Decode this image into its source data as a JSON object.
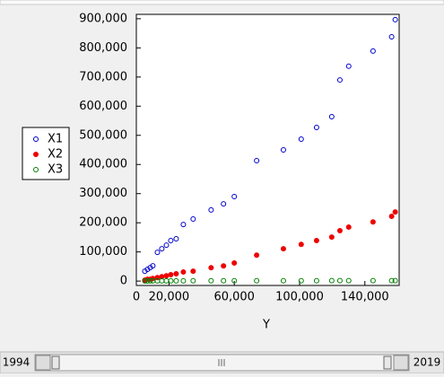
{
  "chart_data": {
    "type": "scatter",
    "x_label": "Y",
    "x": [
      5.2,
      6.8,
      8.5,
      10.1,
      12.9,
      15.6,
      18.4,
      21.1,
      24.4,
      28.8,
      34.8,
      45.8,
      53.4,
      60.0,
      73.7,
      90.1,
      101.0,
      110.4,
      119.7,
      124.7,
      130.1,
      145.0,
      156.4,
      158.6
    ],
    "x_scale": 1000,
    "series": [
      {
        "name": "X1",
        "color": "#0000cc",
        "filled": false,
        "values": [
          33.9,
          40.1,
          46.2,
          52.4,
          98.6,
          111,
          123,
          139,
          145,
          194,
          213,
          244,
          265,
          290,
          413,
          450,
          487,
          527,
          564,
          690,
          737,
          789,
          838,
          897
        ]
      },
      {
        "name": "X2",
        "color": "#ee0000",
        "filled": true,
        "values": [
          3,
          6,
          6,
          9,
          12,
          15,
          18,
          22,
          25,
          31,
          34,
          46,
          52,
          62,
          89,
          111,
          126,
          139,
          151,
          173,
          185,
          203,
          222,
          237
        ]
      },
      {
        "name": "X3",
        "color": "#008000",
        "filled": false,
        "values": [
          0.5,
          0.5,
          0.6,
          0.6,
          0.7,
          0.7,
          0.8,
          0.8,
          0.9,
          0.9,
          1,
          1,
          1.1,
          1.1,
          1.2,
          1.2,
          1.3,
          1.3,
          1.4,
          1.4,
          1.5,
          1.5,
          1.6,
          1.6
        ]
      }
    ],
    "xlim": [
      0,
      161
    ],
    "xticks": [
      {
        "value": 0,
        "label": "0"
      },
      {
        "value": 20,
        "label": "20,000"
      },
      {
        "value": 60,
        "label": "60,000"
      },
      {
        "value": 100,
        "label": "100,000"
      },
      {
        "value": 140,
        "label": "140,000"
      }
    ],
    "ylim": [
      -15,
      915
    ],
    "yticks": [
      {
        "value": 0,
        "label": "0"
      },
      {
        "value": 100,
        "label": "100,000"
      },
      {
        "value": 200,
        "label": "200,000"
      },
      {
        "value": 300,
        "label": "300,000"
      },
      {
        "value": 400,
        "label": "400,000"
      },
      {
        "value": 500,
        "label": "500,000"
      },
      {
        "value": 600,
        "label": "600,000"
      },
      {
        "value": 700,
        "label": "700,000"
      },
      {
        "value": 800,
        "label": "800,000"
      },
      {
        "value": 900,
        "label": "900,000"
      }
    ],
    "grid": false
  },
  "slider": {
    "start": "1994",
    "end": "2019"
  }
}
